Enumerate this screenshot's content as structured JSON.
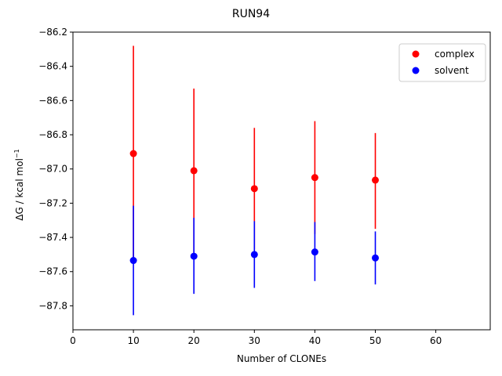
{
  "chart_data": {
    "type": "scatter",
    "title": "RUN94",
    "xlabel": "Number of CLONEs",
    "ylabel_main": "ΔG / kcal mol",
    "ylabel_sup": "−1",
    "xlim": [
      0,
      69
    ],
    "ylim": [
      -87.94,
      -86.2
    ],
    "xticks": [
      0,
      10,
      20,
      30,
      40,
      50,
      60
    ],
    "xtick_labels": [
      "0",
      "10",
      "20",
      "30",
      "40",
      "50",
      "60"
    ],
    "yticks": [
      -87.8,
      -87.6,
      -87.4,
      -87.2,
      -87.0,
      -86.8,
      -86.6,
      -86.4,
      -86.2
    ],
    "ytick_labels": [
      "−87.8",
      "−87.6",
      "−87.4",
      "−87.2",
      "−87.0",
      "−86.8",
      "−86.6",
      "−86.4",
      "−86.2"
    ],
    "grid": false,
    "legend": "top-right",
    "x": [
      10,
      20,
      30,
      40,
      50
    ],
    "series": [
      {
        "name": "complex",
        "color": "#ff0000",
        "values": [
          -86.91,
          -87.01,
          -87.115,
          -87.05,
          -87.065
        ],
        "err_low": [
          -87.53,
          -87.49,
          -87.47,
          -87.38,
          -87.35
        ],
        "err_high": [
          -86.28,
          -86.53,
          -86.76,
          -86.72,
          -86.79
        ]
      },
      {
        "name": "solvent",
        "color": "#0000ff",
        "values": [
          -87.535,
          -87.51,
          -87.5,
          -87.485,
          -87.52
        ],
        "err_low": [
          -87.855,
          -87.73,
          -87.695,
          -87.655,
          -87.675
        ],
        "err_high": [
          -87.215,
          -87.285,
          -87.305,
          -87.31,
          -87.365
        ]
      }
    ]
  }
}
